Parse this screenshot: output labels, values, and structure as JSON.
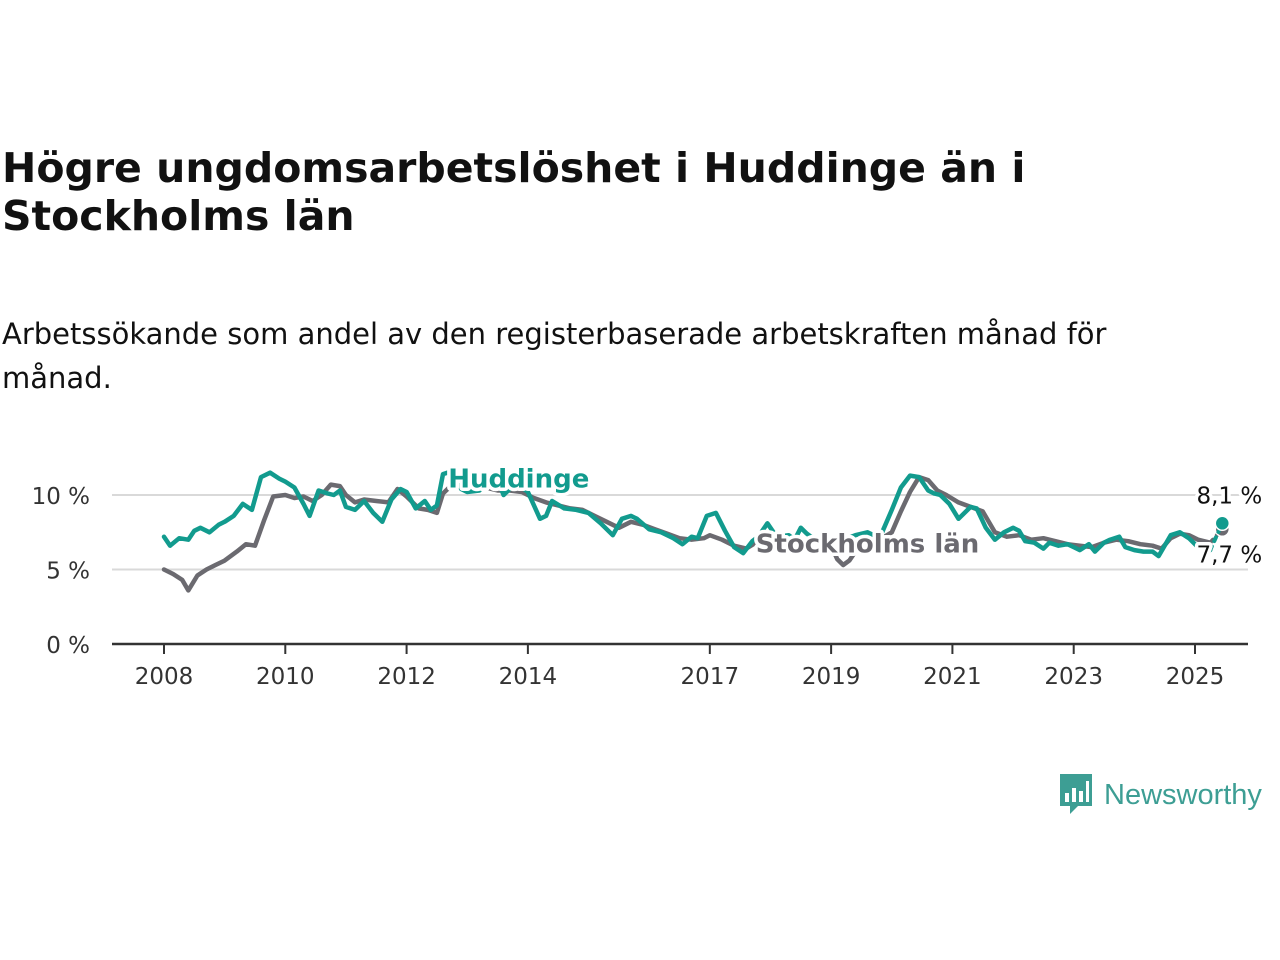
{
  "header": {
    "title": "Högre ungdomsarbetslöshet i Huddinge än i Stockholms län",
    "subtitle": "Arbetssökande som andel av den registerbaserade arbetskraften månad för månad."
  },
  "brand": {
    "name": "Newsworthy",
    "icon": "newsworthy-logo-icon",
    "color": "#3d9e94"
  },
  "chart_data": {
    "type": "line",
    "title": "Högre ungdomsarbetslöshet i Huddinge än i Stockholms län",
    "subtitle": "Arbetssökande som andel av den registerbaserade arbetskraften månad för månad.",
    "xlabel": "",
    "ylabel": "",
    "xlim": [
      2007.9,
      2026.5
    ],
    "ylim": [
      0,
      10.5
    ],
    "x_ticks": [
      2008,
      2010,
      2012,
      2014,
      2017,
      2019,
      2021,
      2023,
      2025
    ],
    "x_tick_labels": [
      "2008",
      "2010",
      "2012",
      "2014",
      "2017",
      "2019",
      "2021",
      "2023",
      "2025"
    ],
    "y_ticks": [
      0,
      5,
      10
    ],
    "y_tick_labels": [
      "0 %",
      "5 %",
      "10 %"
    ],
    "grid": true,
    "legend": "inline labels",
    "series": [
      {
        "name": "Huddinge",
        "color": "#129b8e",
        "end_label": "8,1 %",
        "x": [
          2008.0,
          2008.1,
          2008.25,
          2008.4,
          2008.5,
          2008.6,
          2008.75,
          2008.9,
          2009.0,
          2009.15,
          2009.3,
          2009.45,
          2009.6,
          2009.75,
          2009.9,
          2010.0,
          2010.15,
          2010.3,
          2010.4,
          2010.55,
          2010.7,
          2010.8,
          2010.9,
          2011.0,
          2011.15,
          2011.3,
          2011.45,
          2011.6,
          2011.75,
          2011.9,
          2012.0,
          2012.15,
          2012.3,
          2012.4,
          2012.5,
          2012.6,
          2012.75,
          2012.9,
          2013.0,
          2013.2,
          2013.4,
          2013.5,
          2013.6,
          2013.75,
          2013.9,
          2014.0,
          2014.2,
          2014.3,
          2014.4,
          2014.6,
          2014.8,
          2015.0,
          2015.2,
          2015.4,
          2015.55,
          2015.7,
          2015.8,
          2016.0,
          2016.2,
          2016.4,
          2016.55,
          2016.7,
          2016.8,
          2016.95,
          2017.1,
          2017.25,
          2017.4,
          2017.55,
          2017.7,
          2017.8,
          2017.95,
          2018.1,
          2018.3,
          2018.4,
          2018.5,
          2018.6,
          2018.8,
          2018.9,
          2019.0,
          2019.2,
          2019.4,
          2019.6,
          2019.8,
          2020.0,
          2020.15,
          2020.3,
          2020.45,
          2020.6,
          2020.7,
          2020.8,
          2020.95,
          2021.1,
          2021.3,
          2021.4,
          2021.55,
          2021.7,
          2021.85,
          2022.0,
          2022.1,
          2022.2,
          2022.35,
          2022.5,
          2022.6,
          2022.75,
          2022.9,
          2023.0,
          2023.1,
          2023.25,
          2023.35,
          2023.5,
          2023.6,
          2023.75,
          2023.85,
          2024.0,
          2024.15,
          2024.3,
          2024.4,
          2024.6,
          2024.75,
          2024.9,
          2025.05,
          2025.25,
          2025.45
        ],
        "y": [
          7.2,
          6.6,
          7.1,
          7.0,
          7.6,
          7.8,
          7.5,
          8.0,
          8.2,
          8.6,
          9.4,
          9.0,
          11.2,
          11.5,
          11.1,
          10.9,
          10.5,
          9.4,
          8.6,
          10.3,
          10.1,
          10.0,
          10.3,
          9.2,
          9.0,
          9.6,
          8.8,
          8.2,
          9.7,
          10.4,
          10.2,
          9.1,
          9.6,
          9.0,
          9.3,
          11.4,
          11.6,
          10.4,
          10.2,
          10.3,
          11.4,
          11.0,
          10.0,
          10.6,
          10.5,
          10.2,
          8.4,
          8.6,
          9.6,
          9.1,
          9.0,
          8.8,
          8.1,
          7.3,
          8.4,
          8.6,
          8.4,
          7.7,
          7.5,
          7.1,
          6.7,
          7.2,
          7.1,
          8.6,
          8.8,
          7.6,
          6.5,
          6.1,
          6.9,
          7.2,
          8.1,
          7.2,
          7.3,
          7.0,
          7.8,
          7.4,
          6.8,
          7.0,
          7.1,
          7.0,
          7.3,
          7.5,
          7.1,
          9.0,
          10.5,
          11.3,
          11.2,
          10.3,
          10.1,
          10.0,
          9.4,
          8.4,
          9.2,
          9.1,
          7.8,
          7.0,
          7.5,
          7.8,
          7.6,
          6.9,
          6.8,
          6.4,
          6.8,
          6.6,
          6.7,
          6.5,
          6.3,
          6.7,
          6.2,
          6.8,
          7.0,
          7.2,
          6.5,
          6.3,
          6.2,
          6.2,
          5.9,
          7.3,
          7.5,
          7.1,
          6.5,
          6.3,
          8.1
        ]
      },
      {
        "name": "Stockholms län",
        "color": "#6b6a70",
        "end_label": "7,7 %",
        "x": [
          2008.0,
          2008.15,
          2008.3,
          2008.4,
          2008.55,
          2008.7,
          2008.85,
          2009.0,
          2009.2,
          2009.35,
          2009.5,
          2009.65,
          2009.8,
          2010.0,
          2010.15,
          2010.3,
          2010.45,
          2010.6,
          2010.75,
          2010.9,
          2011.0,
          2011.15,
          2011.3,
          2011.5,
          2011.7,
          2011.85,
          2012.0,
          2012.2,
          2012.35,
          2012.5,
          2012.6,
          2012.75,
          2012.9,
          2013.1,
          2013.3,
          2013.5,
          2013.7,
          2013.9,
          2014.1,
          2014.3,
          2014.5,
          2014.7,
          2014.9,
          2015.1,
          2015.3,
          2015.5,
          2015.7,
          2015.9,
          2016.1,
          2016.3,
          2016.5,
          2016.7,
          2016.9,
          2017.0,
          2017.2,
          2017.4,
          2017.6,
          2017.8,
          2018.0,
          2018.2,
          2018.4,
          2018.6,
          2018.8,
          2019.0,
          2019.1,
          2019.2,
          2019.3,
          2019.4,
          2019.6,
          2019.8,
          2020.0,
          2020.15,
          2020.3,
          2020.45,
          2020.6,
          2020.75,
          2020.9,
          2021.1,
          2021.3,
          2021.5,
          2021.7,
          2021.9,
          2022.1,
          2022.3,
          2022.5,
          2022.7,
          2022.9,
          2023.1,
          2023.3,
          2023.5,
          2023.7,
          2023.9,
          2024.1,
          2024.3,
          2024.45,
          2024.6,
          2024.75,
          2024.9,
          2025.05,
          2025.25,
          2025.45
        ],
        "y": [
          5.0,
          4.7,
          4.3,
          3.6,
          4.6,
          5.0,
          5.3,
          5.6,
          6.2,
          6.7,
          6.6,
          8.3,
          9.9,
          10.0,
          9.8,
          9.9,
          9.6,
          10.0,
          10.7,
          10.6,
          10.0,
          9.5,
          9.7,
          9.6,
          9.5,
          10.4,
          9.9,
          9.1,
          9.0,
          8.8,
          10.1,
          10.7,
          10.6,
          10.4,
          10.5,
          10.3,
          10.3,
          10.2,
          9.8,
          9.5,
          9.3,
          9.1,
          9.0,
          8.6,
          8.2,
          7.8,
          8.2,
          8.0,
          7.7,
          7.4,
          7.1,
          7.0,
          7.1,
          7.3,
          7.0,
          6.6,
          6.4,
          6.9,
          7.1,
          6.9,
          7.0,
          6.7,
          7.0,
          6.6,
          5.7,
          5.3,
          5.6,
          6.2,
          6.6,
          7.0,
          7.5,
          8.9,
          10.2,
          11.2,
          11.0,
          10.3,
          10.0,
          9.5,
          9.2,
          8.9,
          7.5,
          7.2,
          7.3,
          7.0,
          7.1,
          6.9,
          6.7,
          6.6,
          6.5,
          6.8,
          7.0,
          6.9,
          6.7,
          6.6,
          6.4,
          7.1,
          7.4,
          7.3,
          7.0,
          6.8,
          7.7
        ]
      }
    ]
  }
}
